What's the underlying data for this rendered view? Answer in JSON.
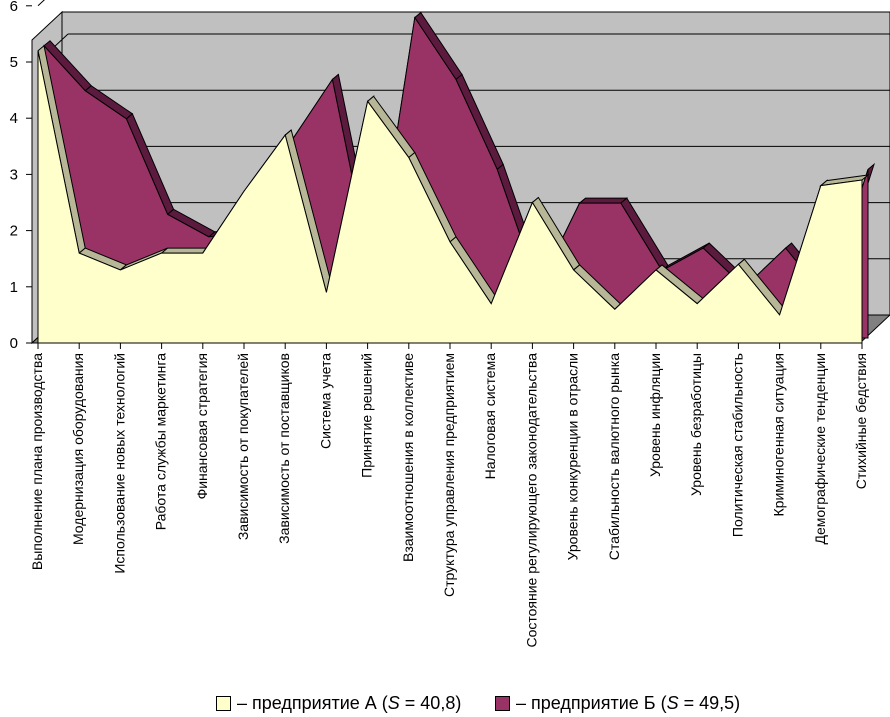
{
  "chart_data": {
    "type": "area",
    "title": "",
    "xlabel": "",
    "ylabel": "",
    "ylim": [
      0,
      6
    ],
    "yticks": [
      "0",
      "1",
      "2",
      "3",
      "4",
      "5",
      "6"
    ],
    "grid": true,
    "view": "3d",
    "categories": [
      "Выполнение плана производства",
      "Модернизация оборудования",
      "Использование новых технологий",
      "Работа службы маркетинга",
      "Финансовая стратегия",
      "Зависимость от покупателей",
      "Зависимость от поставщиков",
      "Система учета",
      "Принятие решений",
      "Взаимоотношения в коллективе",
      "Структура управления предприятием",
      "Налоговая система",
      "Состояние регулирующего законодательства",
      "Уровень конкуренции в отрасли",
      "Стабильность валютного рынка",
      "Уровень инфляции",
      "Уровень безработицы",
      "Политическая стабильность",
      "Криминогенная ситуация",
      "Демографические тенденции",
      "Стихийные бедствия"
    ],
    "series": [
      {
        "name": "предприятие А",
        "legend_prefix": "– предприятие А (",
        "legend_var": "S",
        "legend_value": " = 40,8)",
        "color": "#ffffcc",
        "values": [
          5.2,
          1.6,
          1.3,
          1.6,
          1.6,
          2.7,
          3.7,
          0.9,
          4.3,
          3.3,
          1.8,
          0.7,
          2.5,
          1.3,
          0.6,
          1.3,
          0.7,
          1.4,
          0.5,
          2.8,
          2.9
        ]
      },
      {
        "name": "предприятие Б",
        "legend_prefix": "– предприятие Б (",
        "legend_var": "S",
        "legend_value": " = 49,5)",
        "color": "#993366",
        "values": [
          5.2,
          4.4,
          3.9,
          2.2,
          1.8,
          1.9,
          3.5,
          4.6,
          1.0,
          5.7,
          4.6,
          3.0,
          0.9,
          2.4,
          2.4,
          1.2,
          1.6,
          0.9,
          1.6,
          0.7,
          3.0
        ]
      }
    ]
  }
}
